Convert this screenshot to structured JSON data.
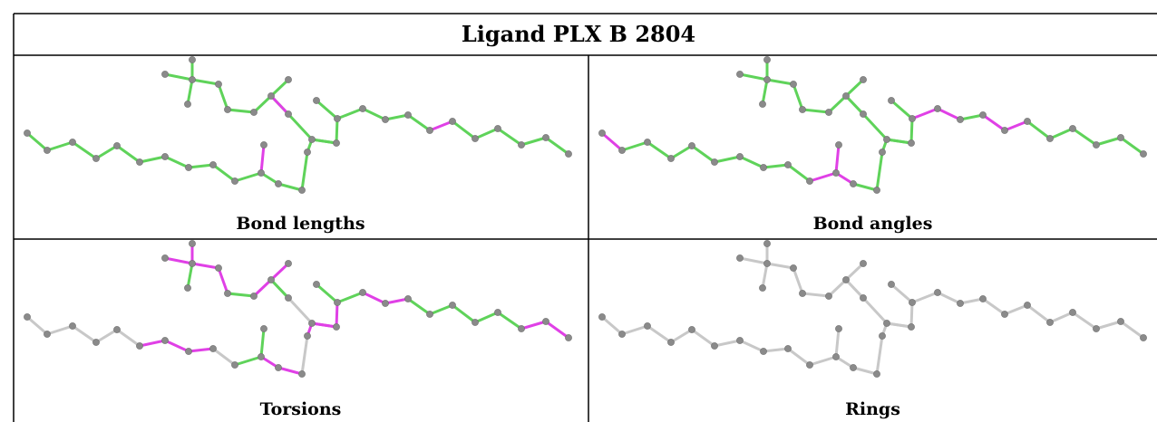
{
  "title": "Ligand PLX B 2804",
  "colors": {
    "ok": "#5fd35a",
    "flagged": "#e040e6",
    "neutral": "#c8c8c8",
    "atom": "#8a8a8a",
    "border": "#000000"
  },
  "panels": [
    {
      "id": "bond-lengths",
      "caption": "Bond lengths",
      "mode": "bonds",
      "flagged_bonds": [
        31,
        37,
        38
      ]
    },
    {
      "id": "bond-angles",
      "caption": "Bond angles",
      "mode": "bonds",
      "flagged_bonds": [
        0,
        9,
        10,
        27,
        28,
        30,
        31,
        37
      ]
    },
    {
      "id": "torsions",
      "caption": "Torsions",
      "mode": "bonds",
      "flagged_bonds": [
        5,
        6,
        7,
        10,
        11,
        13,
        16,
        17,
        19,
        20,
        22,
        24,
        25,
        28,
        29,
        35,
        36,
        39,
        40
      ],
      "neutral_bonds": [
        0,
        1,
        2,
        3,
        4,
        8,
        12,
        14
      ]
    },
    {
      "id": "rings",
      "caption": "Rings",
      "mode": "neutral"
    }
  ]
}
